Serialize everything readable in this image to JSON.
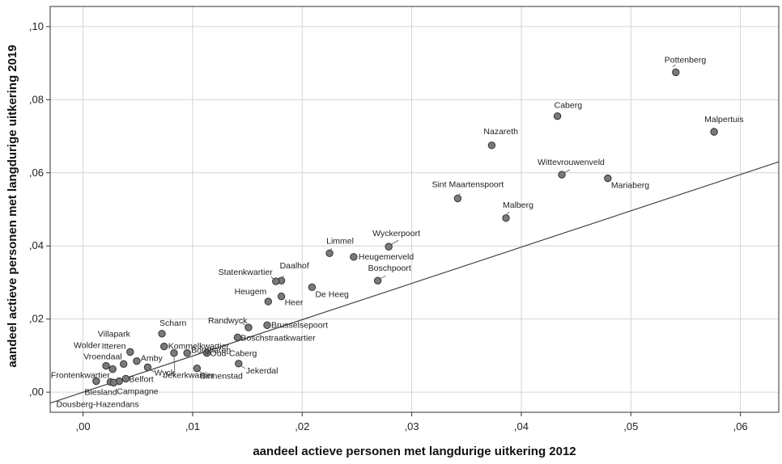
{
  "chart_data": {
    "type": "scatter",
    "xlabel": "aandeel actieve personen met langdurige uitkering 2012",
    "ylabel": "aandeel actieve personen met langdurige uitkering 2019",
    "xlim": [
      -0.003,
      0.0635
    ],
    "ylim": [
      -0.0055,
      0.1055
    ],
    "x_ticks": [
      0,
      0.01,
      0.02,
      0.03,
      0.04,
      0.05,
      0.06
    ],
    "x_tick_labels": [
      ",00",
      ",01",
      ",02",
      ",03",
      ",04",
      ",05",
      ",06"
    ],
    "y_ticks": [
      0,
      0.02,
      0.04,
      0.06,
      0.08,
      0.1
    ],
    "y_tick_labels": [
      ",00",
      ",02",
      ",04",
      ",06",
      ",08",
      ",10"
    ],
    "grid": true,
    "fit_line": {
      "x": [
        -0.003,
        0.0635
      ],
      "y": [
        -0.003,
        0.063
      ]
    },
    "points": [
      {
        "label": "Pottenberg",
        "x": 0.0541,
        "y": 0.0875
      },
      {
        "label": "Caberg",
        "x": 0.0433,
        "y": 0.0755
      },
      {
        "label": "Malpertuis",
        "x": 0.0576,
        "y": 0.0712
      },
      {
        "label": "Nazareth",
        "x": 0.0373,
        "y": 0.0675
      },
      {
        "label": "Wittevrouwenveld",
        "x": 0.0437,
        "y": 0.0595
      },
      {
        "label": "Mariaberg",
        "x": 0.0479,
        "y": 0.0585
      },
      {
        "label": "Sint Maartenspoort",
        "x": 0.0342,
        "y": 0.053
      },
      {
        "label": "Malberg",
        "x": 0.0386,
        "y": 0.0476
      },
      {
        "label": "Wyckerpoort",
        "x": 0.0279,
        "y": 0.0398
      },
      {
        "label": "Limmel",
        "x": 0.0225,
        "y": 0.038
      },
      {
        "label": "Heugemerveld",
        "x": 0.0247,
        "y": 0.037
      },
      {
        "label": "Boschpoort",
        "x": 0.0269,
        "y": 0.0305
      },
      {
        "label": "Daalhof",
        "x": 0.0181,
        "y": 0.0305
      },
      {
        "label": "Statenkwartier",
        "x": 0.0176,
        "y": 0.0303
      },
      {
        "label": "De Heeg",
        "x": 0.0209,
        "y": 0.0287
      },
      {
        "label": "Heer",
        "x": 0.0181,
        "y": 0.0262
      },
      {
        "label": "Heugem",
        "x": 0.0169,
        "y": 0.0248
      },
      {
        "label": "Brusselsepoort",
        "x": 0.0168,
        "y": 0.0183
      },
      {
        "label": "Randwyck",
        "x": 0.0151,
        "y": 0.0177
      },
      {
        "label": "Boschstraatkwartier",
        "x": 0.0141,
        "y": 0.015
      },
      {
        "label": "Scharn",
        "x": 0.0072,
        "y": 0.016
      },
      {
        "label": "Kommelkwartier",
        "x": 0.0074,
        "y": 0.0125
      },
      {
        "label": "Borgharen",
        "x": 0.0095,
        "y": 0.0107
      },
      {
        "label": "Oud-Caberg",
        "x": 0.0113,
        "y": 0.0107
      },
      {
        "label": "Villapark",
        "x": 0.0043,
        "y": 0.011
      },
      {
        "label": "Amby",
        "x": 0.0049,
        "y": 0.0085
      },
      {
        "label": "Itteren",
        "x": 0.0037,
        "y": 0.0077
      },
      {
        "label": "Wolder",
        "x": 0.0021,
        "y": 0.0072
      },
      {
        "label": "Vroendaal",
        "x": 0.0027,
        "y": 0.0063
      },
      {
        "label": "Wyck",
        "x": 0.0059,
        "y": 0.0068
      },
      {
        "label": "Binnenstad",
        "x": 0.0104,
        "y": 0.0065
      },
      {
        "label": "Jekerdal",
        "x": 0.0142,
        "y": 0.0078
      },
      {
        "label": "Jekerkwartier",
        "x": 0.0083,
        "y": 0.0107
      },
      {
        "label": "Belfort",
        "x": 0.0039,
        "y": 0.0037
      },
      {
        "label": "Campagne",
        "x": 0.0033,
        "y": 0.003
      },
      {
        "label": "Frontenkwartier",
        "x": 0.0012,
        "y": 0.003
      },
      {
        "label": "Biesland",
        "x": 0.0025,
        "y": 0.0028
      },
      {
        "label": "Dousberg-Hazendans",
        "x": 0.0028,
        "y": 0.0026
      }
    ]
  }
}
